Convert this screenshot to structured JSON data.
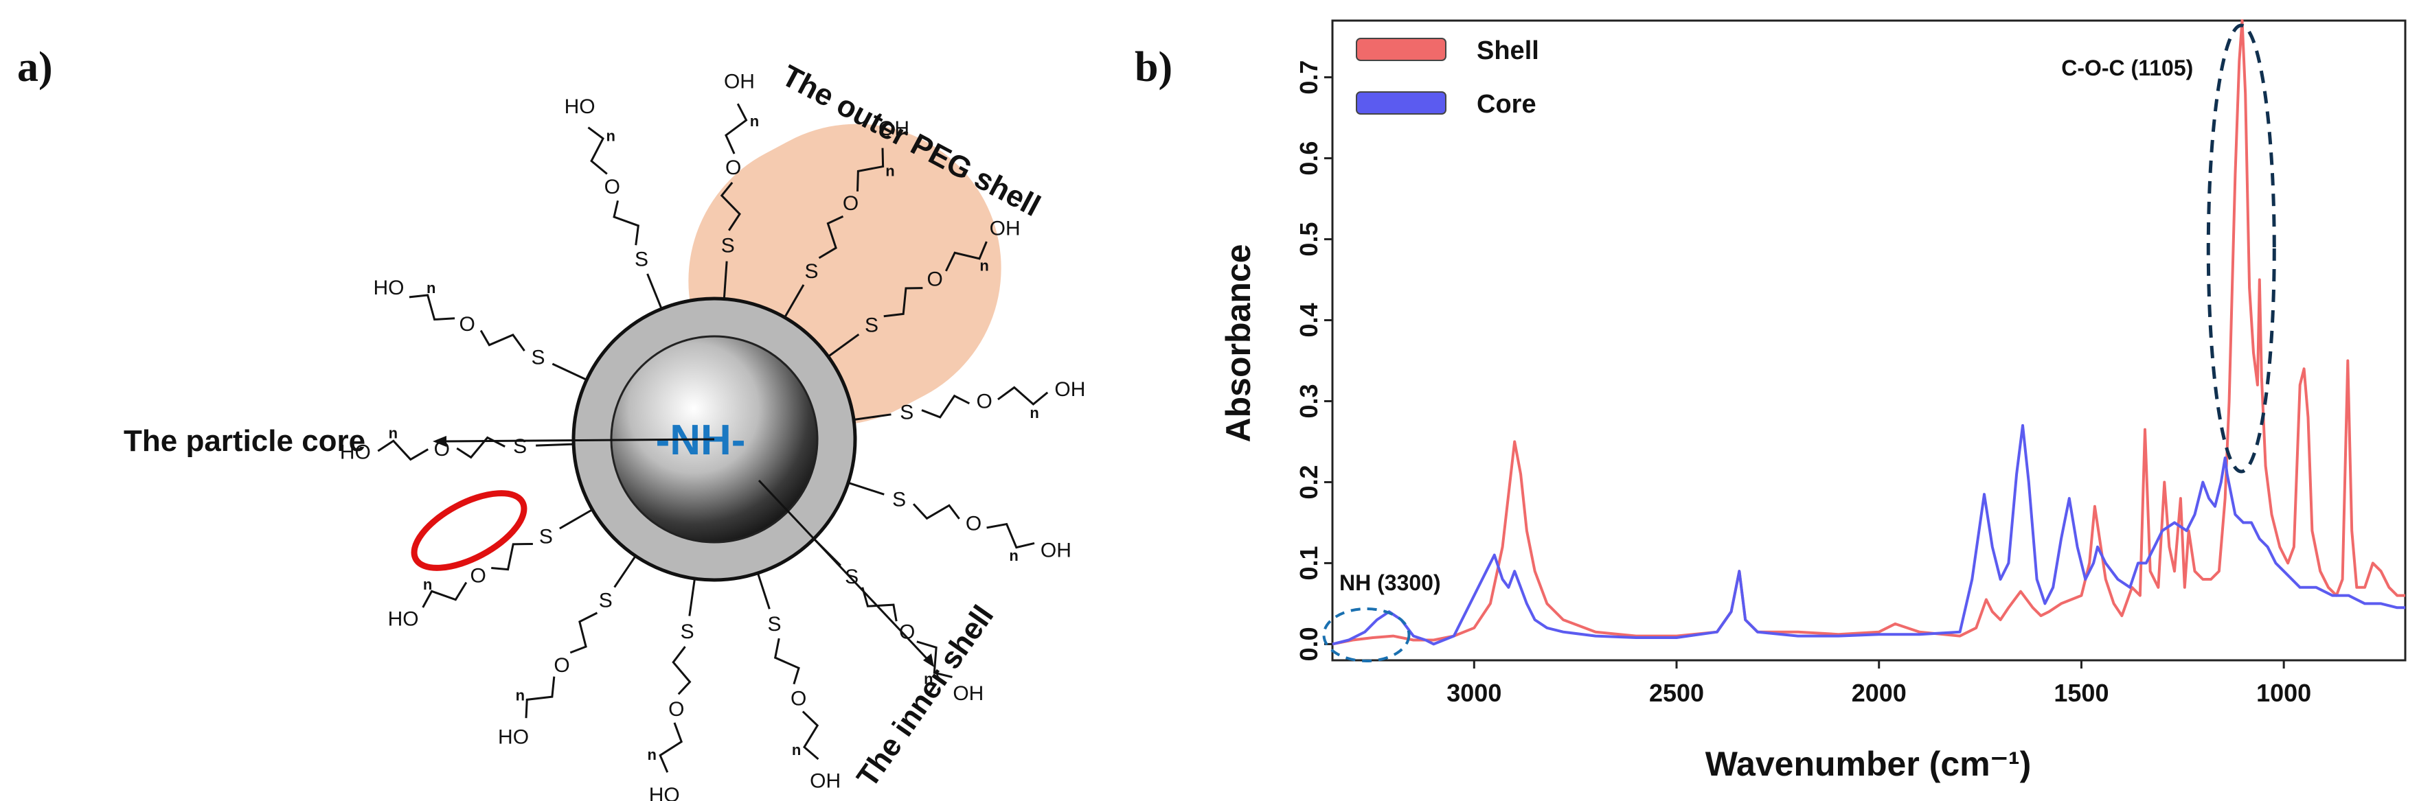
{
  "panels": {
    "a": "a)",
    "b": "b)"
  },
  "schematic": {
    "core_label": "-NH-",
    "particle_core_label": "The particle core",
    "inner_shell_label": "The inner shell",
    "outer_shell_label": "The outer PEG shell",
    "atoms": {
      "sulfur": "S",
      "oxygen": "O",
      "hydroxyl_right": "OH",
      "hydroxyl_left": "HO",
      "repeat": "n"
    },
    "colors": {
      "peg_shell": "#f5cbb0",
      "inner_shell": "#b8b8b8",
      "highlight_ring": "#e01010",
      "core_text": "#1a78c2"
    }
  },
  "chart_data": {
    "type": "line",
    "title": "",
    "xlabel": "Wavenumber (cm⁻¹)",
    "ylabel": "Absorbance",
    "xlim": [
      3350,
      700
    ],
    "ylim": [
      -0.02,
      0.77
    ],
    "x_reversed": true,
    "xticks": [
      3000,
      2500,
      2000,
      1500,
      1000
    ],
    "yticks": [
      0.0,
      0.1,
      0.2,
      0.3,
      0.4,
      0.5,
      0.6,
      0.7
    ],
    "legend_position": "top-left",
    "series": [
      {
        "name": "Shell",
        "color": "#f06a6a",
        "x": [
          3350,
          3300,
          3250,
          3200,
          3150,
          3100,
          3050,
          3000,
          2960,
          2930,
          2900,
          2885,
          2870,
          2850,
          2820,
          2780,
          2700,
          2600,
          2500,
          2400,
          2365,
          2345,
          2330,
          2300,
          2200,
          2100,
          2000,
          1960,
          1900,
          1800,
          1760,
          1735,
          1720,
          1700,
          1680,
          1650,
          1620,
          1600,
          1580,
          1550,
          1500,
          1480,
          1467,
          1455,
          1440,
          1420,
          1400,
          1375,
          1355,
          1343,
          1330,
          1310,
          1295,
          1283,
          1270,
          1255,
          1245,
          1235,
          1220,
          1200,
          1180,
          1160,
          1145,
          1135,
          1120,
          1110,
          1103,
          1095,
          1085,
          1075,
          1065,
          1060,
          1055,
          1045,
          1030,
          1010,
          990,
          975,
          960,
          950,
          940,
          930,
          910,
          890,
          870,
          855,
          842,
          832,
          820,
          800,
          780,
          760,
          740,
          720,
          700
        ],
        "y": [
          0.0,
          0.005,
          0.008,
          0.01,
          0.005,
          0.005,
          0.01,
          0.02,
          0.05,
          0.12,
          0.25,
          0.21,
          0.14,
          0.09,
          0.05,
          0.03,
          0.015,
          0.01,
          0.01,
          0.015,
          0.04,
          0.09,
          0.03,
          0.015,
          0.015,
          0.012,
          0.015,
          0.025,
          0.015,
          0.01,
          0.02,
          0.055,
          0.04,
          0.03,
          0.045,
          0.065,
          0.045,
          0.035,
          0.04,
          0.05,
          0.06,
          0.1,
          0.17,
          0.13,
          0.08,
          0.05,
          0.035,
          0.07,
          0.06,
          0.265,
          0.09,
          0.07,
          0.2,
          0.12,
          0.09,
          0.18,
          0.07,
          0.14,
          0.09,
          0.08,
          0.08,
          0.09,
          0.18,
          0.3,
          0.58,
          0.72,
          0.77,
          0.68,
          0.44,
          0.36,
          0.32,
          0.45,
          0.33,
          0.22,
          0.16,
          0.12,
          0.1,
          0.12,
          0.32,
          0.34,
          0.28,
          0.14,
          0.09,
          0.07,
          0.06,
          0.08,
          0.35,
          0.14,
          0.07,
          0.07,
          0.1,
          0.09,
          0.07,
          0.06,
          0.06
        ]
      },
      {
        "name": "Core",
        "color": "#5b5bf0",
        "x": [
          3350,
          3310,
          3270,
          3240,
          3210,
          3180,
          3150,
          3120,
          3100,
          3050,
          3000,
          2970,
          2950,
          2930,
          2915,
          2900,
          2885,
          2870,
          2850,
          2820,
          2780,
          2700,
          2600,
          2500,
          2400,
          2365,
          2345,
          2330,
          2300,
          2200,
          2100,
          2000,
          1900,
          1800,
          1770,
          1740,
          1720,
          1700,
          1680,
          1660,
          1645,
          1630,
          1610,
          1590,
          1570,
          1550,
          1530,
          1510,
          1490,
          1470,
          1460,
          1440,
          1410,
          1380,
          1360,
          1340,
          1320,
          1300,
          1270,
          1240,
          1220,
          1200,
          1185,
          1170,
          1155,
          1145,
          1140,
          1120,
          1100,
          1080,
          1060,
          1040,
          1020,
          1000,
          960,
          920,
          880,
          840,
          800,
          760,
          720,
          700
        ],
        "y": [
          0.0,
          0.005,
          0.015,
          0.03,
          0.04,
          0.03,
          0.01,
          0.005,
          0.0,
          0.01,
          0.06,
          0.09,
          0.11,
          0.08,
          0.07,
          0.09,
          0.07,
          0.05,
          0.03,
          0.02,
          0.015,
          0.01,
          0.008,
          0.008,
          0.015,
          0.04,
          0.09,
          0.03,
          0.015,
          0.01,
          0.01,
          0.012,
          0.012,
          0.015,
          0.08,
          0.185,
          0.12,
          0.08,
          0.1,
          0.21,
          0.27,
          0.2,
          0.08,
          0.05,
          0.07,
          0.13,
          0.18,
          0.12,
          0.08,
          0.1,
          0.12,
          0.1,
          0.08,
          0.07,
          0.1,
          0.1,
          0.12,
          0.14,
          0.15,
          0.14,
          0.16,
          0.2,
          0.18,
          0.17,
          0.2,
          0.23,
          0.21,
          0.16,
          0.15,
          0.15,
          0.13,
          0.12,
          0.1,
          0.09,
          0.07,
          0.07,
          0.06,
          0.06,
          0.05,
          0.05,
          0.045,
          0.045
        ]
      }
    ],
    "annotations": [
      {
        "text": "C-O-C (1105)",
        "x": 1105,
        "y": 0.77
      },
      {
        "text": "NH (3300)",
        "x": 3300,
        "y": 0.04
      }
    ]
  }
}
